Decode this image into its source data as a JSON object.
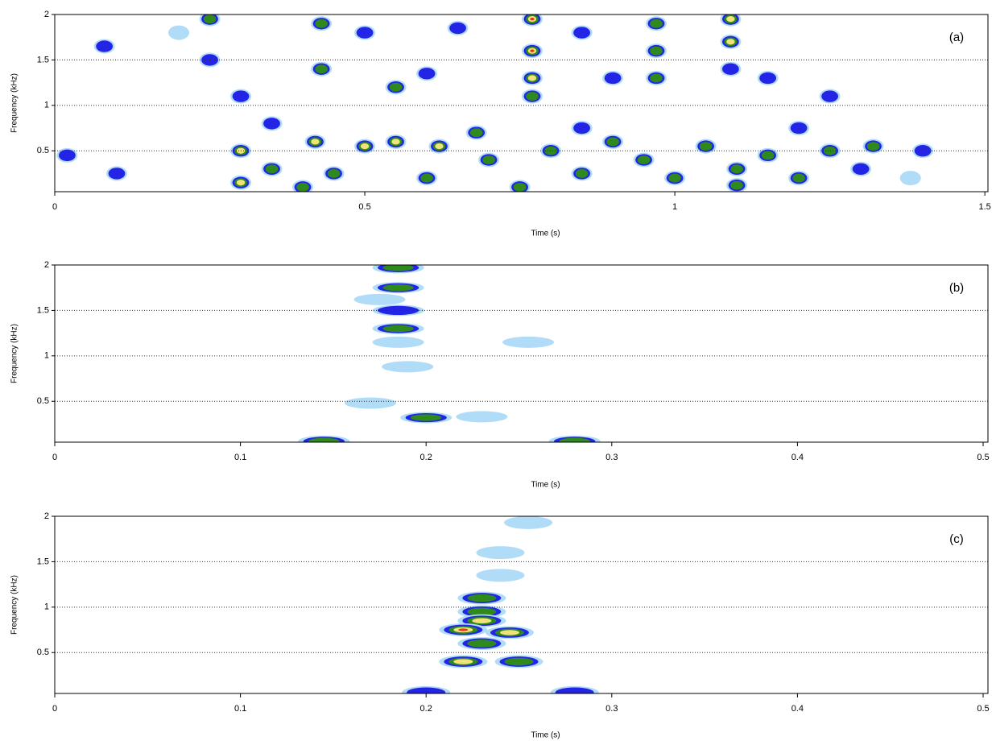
{
  "chart_data": [
    {
      "type": "spectrogram",
      "panel_label": "(a)",
      "xlabel": "Time (s)",
      "ylabel": "Frequency (kHz)",
      "xlim": [
        0,
        1.505
      ],
      "xticks": [
        0,
        0.5,
        1,
        1.5
      ],
      "ylim": [
        0.05,
        2
      ],
      "yticks": [
        0.5,
        1,
        1.5,
        2
      ],
      "grid": true,
      "x": [
        0.77,
        0.77,
        0.77,
        0.77,
        0.97,
        0.97,
        0.97,
        1.09,
        1.09,
        1.09,
        0.25,
        0.25,
        0.43,
        0.43,
        0.42,
        0.3,
        0.3,
        0.35,
        0.5,
        0.55,
        0.62,
        0.45,
        0.6,
        0.7,
        0.68,
        0.8,
        0.85,
        0.9,
        0.95,
        1.0,
        1.05,
        1.1,
        1.15,
        1.2,
        1.25,
        1.3,
        1.32,
        0.55,
        0.6,
        0.5,
        0.65,
        0.85,
        0.9,
        1.15,
        1.25,
        0.3,
        0.35,
        0.02,
        0.1,
        0.08,
        0.2,
        1.4,
        1.38,
        0.4,
        0.75,
        1.1,
        0.85,
        1.2
      ],
      "y": [
        1.95,
        1.6,
        1.3,
        1.1,
        1.9,
        1.6,
        1.3,
        1.95,
        1.7,
        1.4,
        1.95,
        1.5,
        1.9,
        1.4,
        0.6,
        0.5,
        0.15,
        0.3,
        0.55,
        0.6,
        0.55,
        0.25,
        0.2,
        0.4,
        0.7,
        0.5,
        0.25,
        0.6,
        0.4,
        0.2,
        0.55,
        0.3,
        0.45,
        0.2,
        0.5,
        0.3,
        0.55,
        1.2,
        1.35,
        1.8,
        1.85,
        1.8,
        1.3,
        1.3,
        1.1,
        1.1,
        0.8,
        0.45,
        0.25,
        1.65,
        1.8,
        0.5,
        0.2,
        0.1,
        0.1,
        0.12,
        0.75,
        0.75
      ],
      "intensity": [
        5,
        5,
        4,
        3,
        3,
        3,
        3,
        4,
        4,
        2,
        3,
        2,
        3,
        3,
        4,
        4,
        4,
        3,
        4,
        4,
        4,
        3,
        3,
        3,
        3,
        3,
        3,
        3,
        3,
        3,
        3,
        3,
        3,
        3,
        3,
        2,
        3,
        3,
        2,
        2,
        2,
        2,
        2,
        2,
        2,
        2,
        2,
        2,
        2,
        2,
        1,
        2,
        1,
        3,
        3,
        3,
        2,
        2
      ]
    },
    {
      "type": "spectrogram",
      "panel_label": "(b)",
      "xlabel": "Time (s)",
      "ylabel": "Frequency (kHz)",
      "xlim": [
        0,
        0.5026
      ],
      "xticks": [
        0,
        0.1,
        0.2,
        0.3,
        0.4,
        0.5
      ],
      "ylim": [
        0.05,
        2
      ],
      "yticks": [
        0.5,
        1,
        1.5,
        2
      ],
      "grid": true,
      "x": [
        0.185,
        0.185,
        0.185,
        0.185,
        0.185,
        0.175,
        0.19,
        0.2,
        0.23,
        0.145,
        0.28,
        0.255,
        0.17
      ],
      "y": [
        1.97,
        1.75,
        1.5,
        1.3,
        1.15,
        1.62,
        0.88,
        0.32,
        0.33,
        0.06,
        0.06,
        1.15,
        0.48
      ],
      "intensity": [
        3,
        3,
        2,
        3,
        1,
        1,
        1,
        3,
        1,
        3,
        3,
        1,
        1
      ]
    },
    {
      "type": "spectrogram",
      "panel_label": "(c)",
      "xlabel": "Time (s)",
      "ylabel": "Frequency (kHz)",
      "xlim": [
        0,
        0.5026
      ],
      "xticks": [
        0,
        0.1,
        0.2,
        0.3,
        0.4,
        0.5
      ],
      "ylim": [
        0.05,
        2
      ],
      "yticks": [
        0.5,
        1,
        1.5,
        2
      ],
      "grid": true,
      "x": [
        0.23,
        0.23,
        0.23,
        0.22,
        0.245,
        0.23,
        0.22,
        0.25,
        0.24,
        0.24,
        0.2,
        0.28,
        0.255
      ],
      "y": [
        1.1,
        0.95,
        0.85,
        0.75,
        0.72,
        0.6,
        0.4,
        0.4,
        1.35,
        1.6,
        0.06,
        0.06,
        1.93
      ],
      "intensity": [
        3,
        3,
        4,
        5,
        4,
        3,
        4,
        3,
        1,
        1,
        2,
        2,
        1
      ]
    }
  ]
}
